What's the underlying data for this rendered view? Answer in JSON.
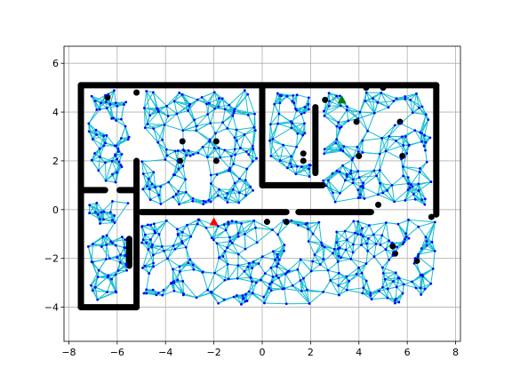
{
  "chart_data": {
    "type": "scatter",
    "title": "",
    "xlabel": "",
    "ylabel": "",
    "xlim": [
      -8.2,
      8.2
    ],
    "ylim": [
      -5.4,
      6.7
    ],
    "x_ticks": [
      -8,
      -6,
      -4,
      -2,
      0,
      2,
      4,
      6,
      8
    ],
    "y_ticks": [
      -4,
      -2,
      0,
      2,
      4,
      6
    ],
    "x_tick_labels": [
      "−8",
      "−6",
      "−4",
      "−2",
      "0",
      "2",
      "4",
      "6",
      "8"
    ],
    "y_tick_labels": [
      "−4",
      "−2",
      "0",
      "2",
      "4",
      "6"
    ],
    "grid": true,
    "colors": {
      "obstacle": "#000000",
      "roadmap_edge": "#17becf",
      "sample_node": "#0000ff",
      "start": "#ff0000",
      "goal": "#008000"
    },
    "start_point": {
      "x": -2.0,
      "y": -0.5
    },
    "goal_point": {
      "x": 3.3,
      "y": 4.5
    },
    "walls": [
      {
        "x": [
          -7.5,
          7.2
        ],
        "y": [
          5.1,
          5.1
        ]
      },
      {
        "x": [
          -7.5,
          -7.5
        ],
        "y": [
          -4.0,
          5.1
        ]
      },
      {
        "x": [
          -7.5,
          -5.2
        ],
        "y": [
          -4.0,
          -4.0
        ]
      },
      {
        "x": [
          -7.5,
          -6.5
        ],
        "y": [
          0.8,
          0.8
        ]
      },
      {
        "x": [
          -5.9,
          -5.2
        ],
        "y": [
          0.8,
          0.8
        ]
      },
      {
        "x": [
          -5.2,
          -5.2
        ],
        "y": [
          -4.0,
          2.0
        ]
      },
      {
        "x": [
          -5.5,
          -5.5
        ],
        "y": [
          -2.3,
          -1.2
        ]
      },
      {
        "x": [
          -5.0,
          1.0
        ],
        "y": [
          -0.1,
          -0.1
        ]
      },
      {
        "x": [
          1.5,
          4.5
        ],
        "y": [
          -0.1,
          -0.1
        ]
      },
      {
        "x": [
          0.0,
          0.0
        ],
        "y": [
          1.0,
          5.1
        ]
      },
      {
        "x": [
          0.0,
          2.5
        ],
        "y": [
          1.0,
          1.0
        ]
      },
      {
        "x": [
          2.2,
          2.2
        ],
        "y": [
          1.5,
          4.2
        ]
      },
      {
        "x": [
          7.2,
          7.2
        ],
        "y": [
          -0.2,
          5.1
        ]
      }
    ],
    "obstacle_points": [
      {
        "x": -3.3,
        "y": 2.8
      },
      {
        "x": -1.9,
        "y": 2.8
      },
      {
        "x": -1.9,
        "y": 2.0
      },
      {
        "x": -3.4,
        "y": 2.0
      },
      {
        "x": 3.9,
        "y": 3.6
      },
      {
        "x": 5.7,
        "y": 3.6
      },
      {
        "x": 4.0,
        "y": 2.2
      },
      {
        "x": 5.8,
        "y": 2.2
      },
      {
        "x": 1.0,
        "y": -0.5
      },
      {
        "x": 4.8,
        "y": 0.2
      },
      {
        "x": 5.4,
        "y": -1.5
      },
      {
        "x": 5.5,
        "y": -1.8
      },
      {
        "x": 6.4,
        "y": -2.1
      },
      {
        "x": 4.3,
        "y": 5.0
      },
      {
        "x": 5.0,
        "y": 5.0
      },
      {
        "x": 1.7,
        "y": 2.0
      },
      {
        "x": 1.7,
        "y": 2.3
      },
      {
        "x": 2.6,
        "y": 4.5
      },
      {
        "x": 4.4,
        "y": -0.1
      },
      {
        "x": 7.0,
        "y": -0.3
      },
      {
        "x": -6.4,
        "y": 4.6
      },
      {
        "x": -5.2,
        "y": 4.8
      },
      {
        "x": 0.2,
        "y": -0.5
      }
    ]
  }
}
